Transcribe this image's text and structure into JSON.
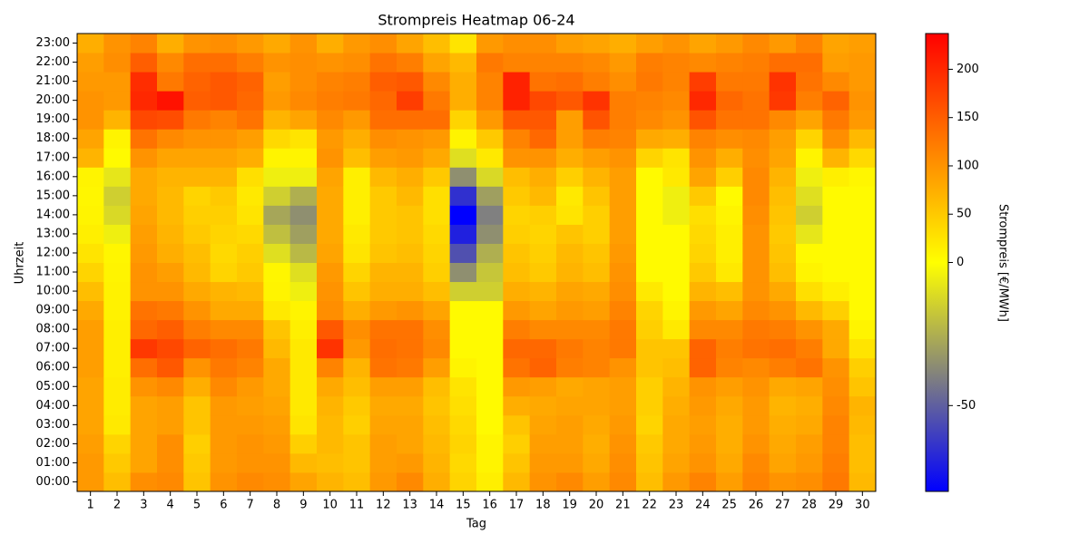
{
  "chart_data": {
    "type": "heatmap",
    "title": "Strompreis Heatmap 06-24",
    "x_label": "Tag",
    "y_label": "Uhrzeit",
    "colorbar_label": "Strompreis [€/MWh]",
    "x": [
      "1",
      "2",
      "3",
      "4",
      "5",
      "6",
      "7",
      "8",
      "9",
      "10",
      "11",
      "12",
      "13",
      "14",
      "15",
      "16",
      "17",
      "18",
      "19",
      "20",
      "21",
      "22",
      "23",
      "24",
      "25",
      "26",
      "27",
      "28",
      "29",
      "30"
    ],
    "y": [
      "00:00",
      "01:00",
      "02:00",
      "03:00",
      "04:00",
      "05:00",
      "06:00",
      "07:00",
      "08:00",
      "09:00",
      "10:00",
      "11:00",
      "12:00",
      "13:00",
      "14:00",
      "15:00",
      "16:00",
      "17:00",
      "18:00",
      "19:00",
      "20:00",
      "21:00",
      "22:00",
      "23:00"
    ],
    "values": [
      [
        95,
        95,
        90,
        85,
        85,
        85,
        90,
        90,
        90,
        80,
        60,
        40,
        25,
        15,
        10,
        8,
        10,
        70,
        85,
        100,
        100,
        95,
        90,
        75
      ],
      [
        60,
        50,
        40,
        20,
        18,
        18,
        15,
        15,
        15,
        12,
        12,
        10,
        8,
        -5,
        -12,
        -15,
        -8,
        5,
        10,
        70,
        95,
        95,
        105,
        100
      ],
      [
        105,
        85,
        85,
        85,
        85,
        100,
        135,
        185,
        140,
        130,
        100,
        100,
        95,
        90,
        85,
        80,
        80,
        100,
        130,
        170,
        200,
        195,
        150,
        115
      ],
      [
        110,
        105,
        105,
        90,
        90,
        110,
        155,
        170,
        150,
        125,
        100,
        90,
        75,
        70,
        65,
        65,
        70,
        85,
        110,
        165,
        220,
        125,
        110,
        75
      ],
      [
        55,
        50,
        45,
        55,
        55,
        75,
        100,
        145,
        120,
        100,
        80,
        65,
        60,
        50,
        45,
        40,
        70,
        85,
        100,
        125,
        150,
        145,
        135,
        100
      ],
      [
        100,
        95,
        95,
        95,
        95,
        110,
        125,
        135,
        110,
        80,
        70,
        40,
        35,
        40,
        45,
        50,
        70,
        85,
        100,
        115,
        155,
        155,
        135,
        105
      ],
      [
        110,
        100,
        100,
        95,
        90,
        95,
        115,
        125,
        110,
        80,
        65,
        50,
        45,
        35,
        25,
        20,
        30,
        75,
        90,
        130,
        140,
        145,
        120,
        95
      ],
      [
        105,
        100,
        95,
        90,
        85,
        80,
        80,
        65,
        55,
        20,
        10,
        8,
        -10,
        -20,
        -28,
        -15,
        -5,
        10,
        35,
        70,
        95,
        90,
        100,
        80
      ],
      [
        85,
        65,
        45,
        25,
        20,
        20,
        20,
        20,
        15,
        10,
        -5,
        -10,
        -22,
        -30,
        -35,
        -25,
        -5,
        10,
        25,
        85,
        110,
        105,
        105,
        100
      ],
      [
        70,
        60,
        65,
        65,
        70,
        80,
        115,
        190,
        155,
        105,
        100,
        95,
        85,
        80,
        80,
        80,
        85,
        100,
        95,
        110,
        120,
        115,
        100,
        75
      ],
      [
        60,
        55,
        55,
        45,
        50,
        60,
        70,
        95,
        105,
        75,
        55,
        40,
        25,
        20,
        15,
        15,
        15,
        60,
        75,
        95,
        125,
        120,
        105,
        95
      ],
      [
        95,
        90,
        90,
        85,
        80,
        90,
        130,
        135,
        130,
        95,
        75,
        70,
        55,
        50,
        50,
        50,
        65,
        90,
        105,
        135,
        140,
        150,
        130,
        105
      ],
      [
        110,
        95,
        85,
        85,
        80,
        90,
        125,
        130,
        130,
        100,
        75,
        70,
        60,
        55,
        55,
        65,
        75,
        95,
        100,
        135,
        180,
        155,
        120,
        85
      ],
      [
        75,
        70,
        65,
        60,
        55,
        60,
        90,
        110,
        105,
        85,
        60,
        45,
        40,
        35,
        30,
        30,
        50,
        80,
        95,
        135,
        125,
        110,
        85,
        60
      ],
      [
        40,
        35,
        40,
        35,
        30,
        25,
        10,
        5,
        5,
        5,
        -15,
        -35,
        -55,
        -70,
        -80,
        -65,
        -35,
        -10,
        10,
        40,
        75,
        75,
        65,
        25
      ],
      [
        15,
        10,
        10,
        5,
        5,
        5,
        5,
        5,
        5,
        5,
        -15,
        -18,
        -25,
        -35,
        -40,
        -30,
        -12,
        20,
        50,
        95,
        115,
        115,
        125,
        95
      ],
      [
        65,
        55,
        45,
        55,
        75,
        95,
        130,
        140,
        120,
        95,
        75,
        60,
        55,
        45,
        40,
        50,
        60,
        100,
        115,
        155,
        205,
        205,
        115,
        105
      ],
      [
        100,
        95,
        90,
        85,
        80,
        90,
        145,
        140,
        110,
        85,
        70,
        50,
        45,
        40,
        45,
        65,
        75,
        100,
        140,
        155,
        170,
        130,
        115,
        105
      ],
      [
        110,
        95,
        90,
        90,
        85,
        80,
        120,
        125,
        110,
        95,
        85,
        70,
        65,
        55,
        25,
        20,
        45,
        75,
        90,
        90,
        155,
        135,
        115,
        90
      ],
      [
        90,
        80,
        75,
        80,
        85,
        85,
        115,
        115,
        110,
        90,
        80,
        60,
        55,
        45,
        45,
        55,
        70,
        90,
        120,
        160,
        190,
        120,
        110,
        85
      ],
      [
        110,
        105,
        100,
        95,
        90,
        90,
        100,
        125,
        125,
        115,
        105,
        100,
        95,
        90,
        90,
        90,
        90,
        100,
        115,
        120,
        120,
        105,
        95,
        75
      ],
      [
        60,
        55,
        50,
        40,
        45,
        45,
        55,
        55,
        45,
        40,
        20,
        5,
        5,
        5,
        5,
        5,
        5,
        40,
        80,
        110,
        115,
        125,
        120,
        90
      ],
      [
        95,
        85,
        80,
        80,
        75,
        70,
        60,
        55,
        20,
        10,
        5,
        5,
        5,
        5,
        -5,
        -5,
        20,
        25,
        75,
        100,
        110,
        115,
        115,
        100
      ],
      [
        115,
        100,
        95,
        90,
        95,
        100,
        145,
        145,
        110,
        95,
        70,
        50,
        40,
        35,
        30,
        50,
        85,
        100,
        115,
        160,
        200,
        180,
        110,
        85
      ],
      [
        90,
        80,
        75,
        75,
        80,
        90,
        115,
        120,
        110,
        85,
        60,
        20,
        15,
        15,
        10,
        5,
        45,
        75,
        105,
        130,
        140,
        125,
        115,
        95
      ],
      [
        115,
        110,
        100,
        95,
        95,
        100,
        110,
        130,
        125,
        110,
        100,
        100,
        100,
        100,
        105,
        110,
        110,
        105,
        110,
        130,
        130,
        125,
        120,
        110
      ],
      [
        100,
        85,
        80,
        75,
        70,
        80,
        120,
        135,
        120,
        100,
        80,
        60,
        55,
        50,
        55,
        60,
        70,
        85,
        90,
        110,
        185,
        190,
        135,
        95
      ],
      [
        105,
        95,
        90,
        80,
        75,
        85,
        130,
        120,
        100,
        65,
        30,
        10,
        5,
        -8,
        -15,
        -10,
        -5,
        10,
        40,
        85,
        120,
        130,
        135,
        115
      ],
      [
        125,
        120,
        115,
        115,
        110,
        105,
        100,
        80,
        80,
        45,
        15,
        5,
        5,
        5,
        5,
        5,
        15,
        70,
        105,
        125,
        145,
        110,
        90,
        85
      ],
      [
        65,
        60,
        60,
        65,
        70,
        55,
        45,
        25,
        10,
        5,
        5,
        5,
        5,
        5,
        5,
        5,
        8,
        35,
        65,
        95,
        100,
        95,
        95,
        90
      ]
    ],
    "clim": [
      -80,
      237
    ],
    "vcenter": 0,
    "cticks": [
      -50,
      0,
      50,
      100,
      150,
      200
    ],
    "colors": [
      "#0000ff",
      "#ffff00",
      "#ff0000"
    ]
  }
}
